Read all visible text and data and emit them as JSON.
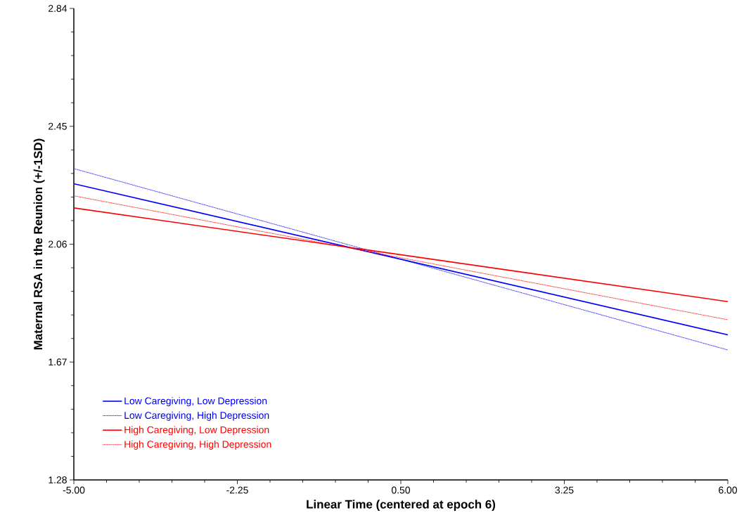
{
  "chart_data": {
    "type": "line",
    "xlabel": "Linear Time (centered at epoch 6)",
    "ylabel": "Maternal RSA in the Reunion (+/-1SD)",
    "x": [
      -5,
      6
    ],
    "series": [
      {
        "name": "Low Caregiving, Low Depression",
        "color": "#0000ff",
        "values": [
          2.26,
          1.76
        ],
        "line_style": "solid"
      },
      {
        "name": "Low Caregiving, High Depression",
        "color": "#0000ff",
        "values": [
          2.31,
          1.71
        ],
        "line_style": "dotted"
      },
      {
        "name": "High Caregiving, Low Depression",
        "color": "#ff0000",
        "values": [
          2.18,
          1.87
        ],
        "line_style": "solid"
      },
      {
        "name": "High Caregiving, High Depression",
        "color": "#ff0000",
        "values": [
          2.22,
          1.81
        ],
        "line_style": "dotted"
      }
    ],
    "xlim": [
      -5,
      6
    ],
    "ylim": [
      1.28,
      2.84
    ],
    "xticks": [
      {
        "value": -5,
        "label": "-5.00"
      },
      {
        "value": -2.25,
        "label": "-2.25"
      },
      {
        "value": 0.5,
        "label": "0.50"
      },
      {
        "value": 3.25,
        "label": "3.25"
      },
      {
        "value": 6,
        "label": "6.00"
      }
    ],
    "yticks": [
      1.28,
      1.67,
      2.06,
      2.45,
      2.84
    ],
    "grid": false,
    "legend": "bottom left",
    "marker": "none"
  }
}
